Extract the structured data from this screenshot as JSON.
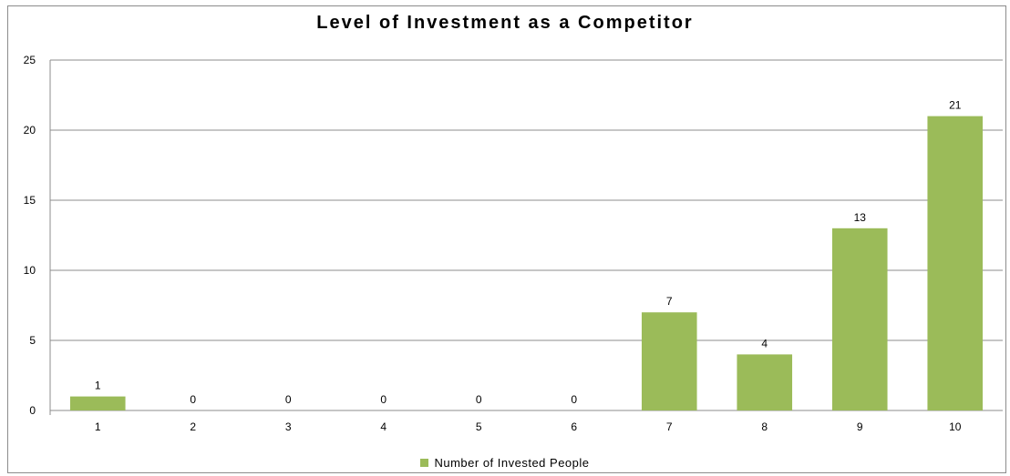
{
  "chart_data": {
    "type": "bar",
    "title": "Level of Investment as a Competitor",
    "xlabel": "",
    "ylabel": "",
    "categories": [
      "1",
      "2",
      "3",
      "4",
      "5",
      "6",
      "7",
      "8",
      "9",
      "10"
    ],
    "series": [
      {
        "name": "Number of Invested People",
        "values": [
          1,
          0,
          0,
          0,
          0,
          0,
          7,
          4,
          13,
          21
        ],
        "color": "#9bbb59"
      }
    ],
    "ylim": [
      0,
      25
    ],
    "yticks": [
      0,
      5,
      10,
      15,
      20,
      25
    ],
    "grid": true,
    "data_labels": true,
    "legend_position": "bottom"
  }
}
